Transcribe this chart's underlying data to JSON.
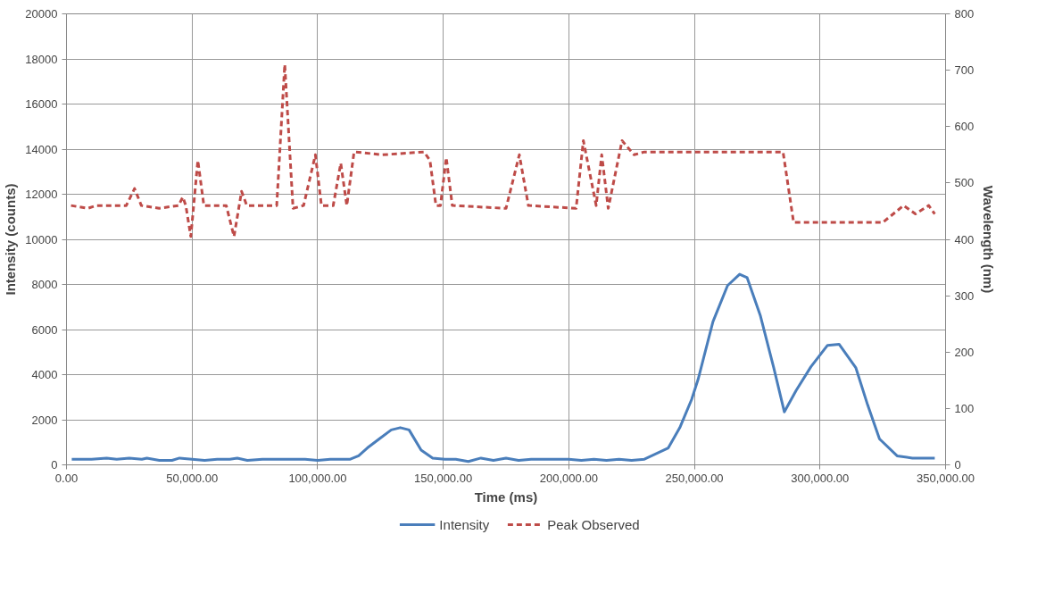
{
  "chart_data": {
    "type": "line",
    "xlabel": "Time (ms)",
    "ylabel": "Intensity (counts)",
    "y2label": "Wavelength (nm)",
    "xlim": [
      0,
      350000
    ],
    "ylim": [
      0,
      20000
    ],
    "y2lim": [
      0,
      800
    ],
    "xticks": [
      {
        "value": 0,
        "label": "0.00"
      },
      {
        "value": 50000,
        "label": "50,000.00"
      },
      {
        "value": 100000,
        "label": "100,000.00"
      },
      {
        "value": 150000,
        "label": "150,000.00"
      },
      {
        "value": 200000,
        "label": "200,000.00"
      },
      {
        "value": 250000,
        "label": "250,000.00"
      },
      {
        "value": 300000,
        "label": "300,000.00"
      },
      {
        "value": 350000,
        "label": "350,000.00"
      }
    ],
    "yticks": [
      0,
      2000,
      4000,
      6000,
      8000,
      10000,
      12000,
      14000,
      16000,
      18000,
      20000
    ],
    "y2ticks": [
      0,
      100,
      200,
      300,
      400,
      500,
      600,
      700,
      800
    ],
    "grid": true,
    "legend": "bottom",
    "series": [
      {
        "name": "Intensity",
        "color": "#4a7ebb",
        "line_style": "solid",
        "x": [
          2100,
          10000,
          16000,
          20000,
          25000,
          30000,
          32000,
          37000,
          42000,
          45000,
          50000,
          55000,
          60000,
          65000,
          68000,
          72000,
          78000,
          85000,
          90000,
          95000,
          100000,
          105000,
          110000,
          113000,
          116300,
          119800,
          124500,
          129300,
          132900,
          136400,
          141200,
          145800,
          150700,
          155000,
          160000,
          165000,
          170000,
          175000,
          180000,
          185000,
          190000,
          200000,
          205000,
          210000,
          215000,
          220000,
          225000,
          230100,
          239600,
          244200,
          248900,
          251500,
          253800,
          257400,
          263200,
          268000,
          271000,
          276300,
          281600,
          285800,
          290500,
          296400,
          303000,
          307600,
          314300,
          319000,
          323700,
          330700,
          336800,
          345700
        ],
        "values": [
          250,
          250,
          300,
          250,
          300,
          250,
          300,
          200,
          200,
          300,
          250,
          200,
          250,
          250,
          300,
          200,
          250,
          250,
          250,
          250,
          200,
          250,
          250,
          250,
          400,
          750,
          1150,
          1550,
          1650,
          1550,
          650,
          300,
          250,
          250,
          150,
          300,
          200,
          300,
          200,
          250,
          250,
          250,
          200,
          250,
          200,
          250,
          200,
          250,
          750,
          1650,
          2900,
          3800,
          4800,
          6350,
          7950,
          8450,
          8300,
          6600,
          4300,
          2350,
          3300,
          4350,
          5300,
          5350,
          4300,
          2650,
          1150,
          400,
          300,
          300
        ]
      },
      {
        "name": "Peak Observed",
        "color": "#be4b48",
        "axis": "y2",
        "line_style": "dashed",
        "x": [
          1800,
          8500,
          12000,
          23800,
          27100,
          29800,
          36900,
          44600,
          46300,
          47500,
          49500,
          52300,
          54700,
          63600,
          66700,
          69700,
          71800,
          83700,
          86900,
          90200,
          94400,
          99100,
          101500,
          106200,
          109200,
          111600,
          114500,
          115100,
          125800,
          142400,
          144700,
          147100,
          148900,
          151200,
          153600,
          175000,
          180300,
          183900,
          202900,
          205800,
          210900,
          213100,
          215700,
          221200,
          226000,
          230100,
          246800,
          283500,
          285300,
          289500,
          300200,
          325000,
          333300,
          338000,
          343300,
          345700
        ],
        "values": [
          460,
          455,
          460,
          460,
          490,
          460,
          455,
          460,
          475,
          460,
          405,
          540,
          460,
          460,
          405,
          485,
          460,
          460,
          710,
          455,
          460,
          550,
          460,
          460,
          535,
          460,
          555,
          555,
          550,
          555,
          540,
          460,
          460,
          545,
          460,
          455,
          550,
          460,
          455,
          575,
          460,
          550,
          455,
          575,
          550,
          555,
          555,
          555,
          555,
          430,
          430,
          430,
          460,
          445,
          460,
          445
        ]
      }
    ]
  }
}
